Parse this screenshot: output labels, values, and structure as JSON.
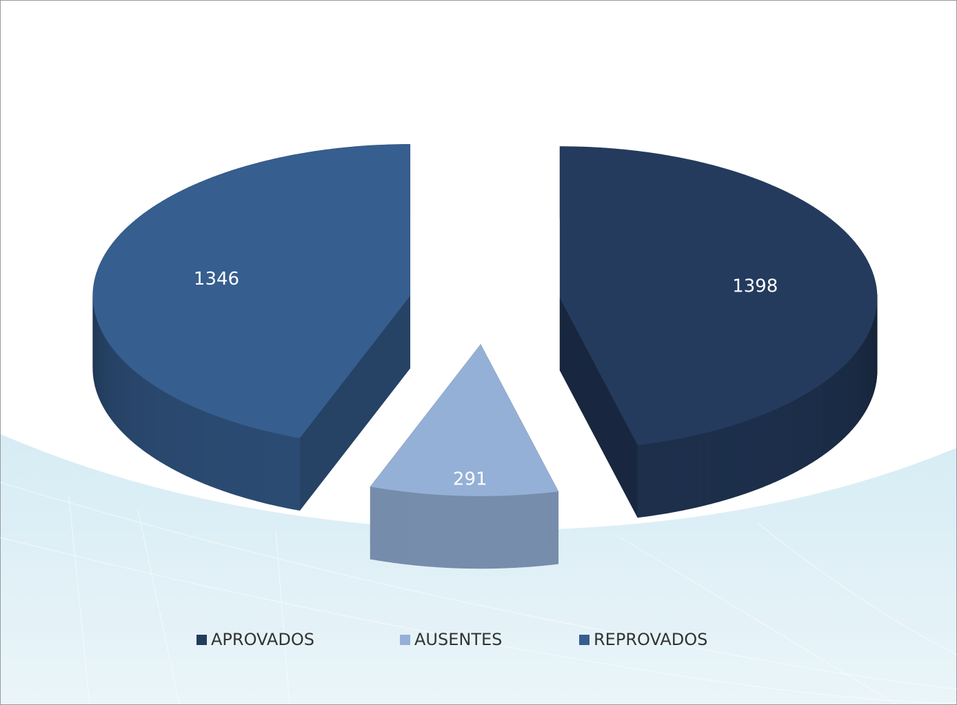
{
  "chart_data": {
    "type": "pie",
    "categories": [
      "APROVADOS",
      "AUSENTES",
      "REPROVADOS"
    ],
    "values": [
      1398,
      291,
      1346
    ],
    "colors": [
      "#243b5e",
      "#94b0d6",
      "#365e8f"
    ],
    "legend": "bottom"
  }
}
